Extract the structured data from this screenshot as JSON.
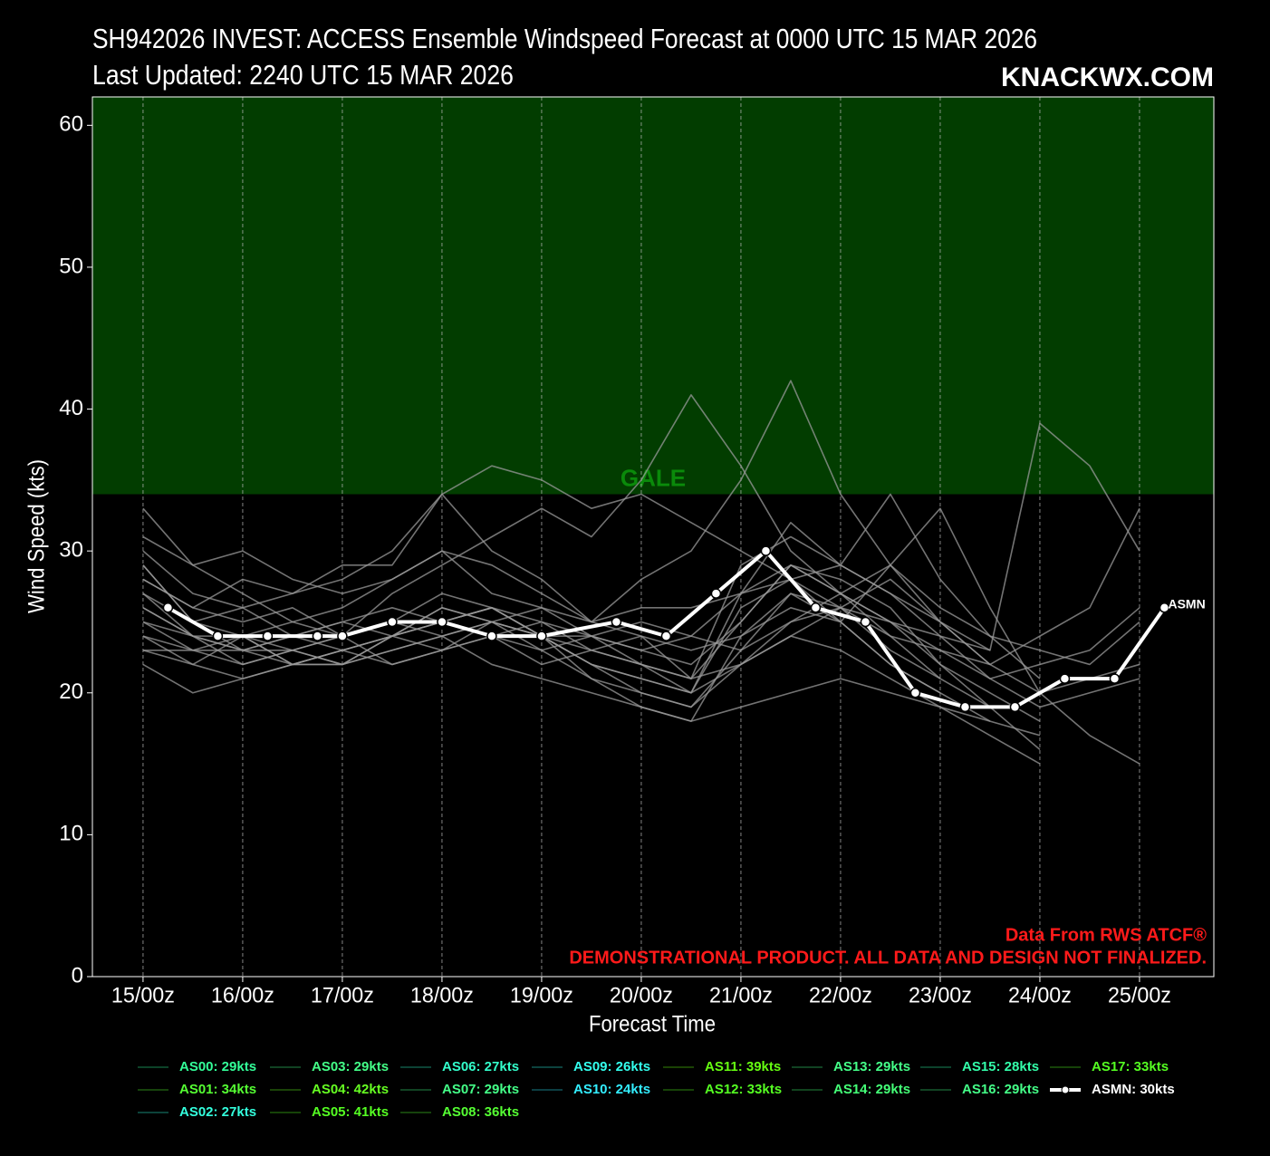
{
  "chart_data": {
    "type": "line",
    "title": "SH942026 INVEST: ACCESS Ensemble Windspeed Forecast at 0000 UTC 15 MAR 2026",
    "subtitle": "Last Updated: 2240 UTC 15 MAR 2026",
    "watermark": "KNACKWX.COM",
    "xlabel": "Forecast Time",
    "ylabel": "Wind Speed (kts)",
    "xlim": [
      -12.2,
      257.9
    ],
    "ylim": [
      0,
      62
    ],
    "xticks": [
      {
        "value": 0,
        "label": "15/00z"
      },
      {
        "value": 24,
        "label": "16/00z"
      },
      {
        "value": 48,
        "label": "17/00z"
      },
      {
        "value": 72,
        "label": "18/00z"
      },
      {
        "value": 96,
        "label": "19/00z"
      },
      {
        "value": 120,
        "label": "20/00z"
      },
      {
        "value": 144,
        "label": "21/00z"
      },
      {
        "value": 168,
        "label": "22/00z"
      },
      {
        "value": 192,
        "label": "23/00z"
      },
      {
        "value": 216,
        "label": "24/00z"
      },
      {
        "value": 240,
        "label": "25/00z"
      }
    ],
    "yticks": [
      0,
      10,
      20,
      30,
      40,
      50,
      60
    ],
    "grid_x": true,
    "background": "#000000",
    "member_line_color": "#9a9a9a",
    "bands": [
      {
        "from": 34,
        "to": 62,
        "label": "GALE",
        "color": "#023d00",
        "label_color": "#0a8a0a"
      }
    ],
    "annotations": [
      "Data From RWS ATCF®",
      "DEMONSTRATIONAL PRODUCT. ALL DATA AND DESIGN NOT FINALIZED."
    ],
    "annotation_color": "#ff1a1a",
    "series": [
      {
        "name": "AS00: 29kts",
        "color": "#33ff99",
        "x": [
          0,
          12,
          24,
          36,
          48,
          60,
          72,
          84,
          96,
          108,
          120,
          132,
          144,
          156,
          168,
          180,
          192,
          204,
          216,
          228,
          240
        ],
        "values": [
          29,
          25,
          24,
          22,
          23,
          24,
          25,
          26,
          24,
          22,
          21,
          20,
          26,
          28,
          25,
          22,
          20,
          18,
          null,
          null,
          null
        ]
      },
      {
        "name": "AS01: 34kts",
        "color": "#55ff33",
        "x": [
          0,
          12,
          24,
          36,
          48,
          60,
          72,
          84,
          96,
          108,
          120,
          132,
          144,
          156,
          168,
          180,
          192,
          204,
          216,
          228,
          240
        ],
        "values": [
          30,
          27,
          26,
          27,
          29,
          29,
          34,
          30,
          28,
          25,
          24,
          21,
          29,
          31,
          29,
          34,
          28,
          24,
          21,
          null,
          null
        ]
      },
      {
        "name": "AS02: 27kts",
        "color": "#33ffdd",
        "x": [
          0,
          12,
          24,
          36,
          48,
          60,
          72,
          84,
          96,
          108,
          120,
          132,
          144,
          156,
          168,
          180,
          192,
          204,
          216,
          228,
          240
        ],
        "values": [
          27,
          24,
          22,
          23,
          22,
          24,
          26,
          25,
          23,
          21,
          19,
          18,
          24,
          27,
          26,
          23,
          21,
          null,
          null,
          null,
          null
        ]
      },
      {
        "name": "AS03: 29kts",
        "color": "#44ff88",
        "x": [
          0,
          12,
          24,
          36,
          48,
          60,
          72,
          84,
          96,
          108,
          120,
          132,
          144,
          156,
          168,
          180,
          192,
          204,
          216,
          228,
          240
        ],
        "values": [
          28,
          26,
          25,
          26,
          24,
          25,
          27,
          26,
          25,
          24,
          22,
          20,
          27,
          29,
          27,
          24,
          21,
          19,
          null,
          null,
          null
        ]
      },
      {
        "name": "AS04: 42kts",
        "color": "#66ff22",
        "x": [
          0,
          12,
          24,
          36,
          48,
          60,
          72,
          84,
          96,
          108,
          120,
          132,
          144,
          156,
          168,
          180,
          192,
          204,
          216,
          228,
          240
        ],
        "values": [
          31,
          29,
          27,
          25,
          26,
          28,
          30,
          29,
          27,
          25,
          28,
          30,
          35,
          42,
          34,
          29,
          25,
          22,
          null,
          null,
          null
        ]
      },
      {
        "name": "AS05: 41kts",
        "color": "#55ff22",
        "x": [
          0,
          12,
          24,
          36,
          48,
          60,
          72,
          84,
          96,
          108,
          120,
          132,
          144,
          156,
          168,
          180,
          192,
          204,
          216,
          228,
          240
        ],
        "values": [
          26,
          24,
          24,
          25,
          24,
          27,
          29,
          31,
          33,
          31,
          35,
          41,
          36,
          30,
          27,
          25,
          22,
          20,
          18,
          null,
          null
        ]
      },
      {
        "name": "AS06: 27kts",
        "color": "#33ffcc",
        "x": [
          0,
          12,
          24,
          36,
          48,
          60,
          72,
          84,
          96,
          108,
          120,
          132,
          144,
          156,
          168,
          180,
          192,
          204,
          216,
          228,
          240
        ],
        "values": [
          25,
          23,
          24,
          22,
          23,
          24,
          25,
          26,
          24,
          21,
          20,
          19,
          23,
          27,
          25,
          22,
          20,
          null,
          null,
          null,
          null
        ]
      },
      {
        "name": "AS07: 29kts",
        "color": "#44ff88",
        "x": [
          0,
          12,
          24,
          36,
          48,
          60,
          72,
          84,
          96,
          108,
          120,
          132,
          144,
          156,
          168,
          180,
          192,
          204,
          216,
          228,
          240
        ],
        "values": [
          29,
          25,
          23,
          24,
          23,
          22,
          23,
          24,
          25,
          23,
          22,
          21,
          25,
          29,
          28,
          26,
          22,
          19,
          16,
          null,
          null
        ]
      },
      {
        "name": "AS08: 36kts",
        "color": "#55ff33",
        "x": [
          0,
          12,
          24,
          36,
          48,
          60,
          72,
          84,
          96,
          108,
          120,
          132,
          144,
          156,
          168,
          180,
          192,
          204,
          216,
          228,
          240
        ],
        "values": [
          28,
          26,
          28,
          27,
          28,
          30,
          34,
          36,
          35,
          33,
          34,
          32,
          30,
          28,
          26,
          25,
          24,
          23,
          null,
          null,
          null
        ]
      },
      {
        "name": "AS09: 26kts",
        "color": "#33ffee",
        "x": [
          0,
          12,
          24,
          36,
          48,
          60,
          72,
          84,
          96,
          108,
          120,
          132,
          144,
          156,
          168,
          180,
          192,
          204,
          216,
          228,
          240
        ],
        "values": [
          24,
          22,
          21,
          22,
          23,
          24,
          25,
          26,
          24,
          22,
          20,
          19,
          22,
          24,
          23,
          21,
          19,
          18,
          17,
          null,
          null
        ]
      },
      {
        "name": "AS10: 24kts",
        "color": "#33eeff",
        "x": [
          0,
          12,
          24,
          36,
          48,
          60,
          72,
          84,
          96,
          108,
          120,
          132,
          144,
          156,
          168,
          180,
          192,
          204,
          216,
          228,
          240
        ],
        "values": [
          22,
          20,
          21,
          22,
          22,
          23,
          24,
          22,
          21,
          20,
          19,
          18,
          19,
          20,
          21,
          20,
          19,
          17,
          15,
          null,
          null
        ]
      },
      {
        "name": "AS11: 39kts",
        "color": "#66ff11",
        "x": [
          0,
          12,
          24,
          36,
          48,
          60,
          72,
          84,
          96,
          108,
          120,
          132,
          144,
          156,
          168,
          180,
          192,
          204,
          216,
          228,
          240
        ],
        "values": [
          33,
          29,
          30,
          28,
          27,
          28,
          30,
          27,
          26,
          24,
          23,
          24,
          27,
          32,
          29,
          27,
          25,
          23,
          39,
          36,
          30
        ]
      },
      {
        "name": "AS12: 33kts",
        "color": "#55ff22",
        "x": [
          0,
          12,
          24,
          36,
          48,
          60,
          72,
          84,
          96,
          108,
          120,
          132,
          144,
          156,
          168,
          180,
          192,
          204,
          216,
          228,
          240
        ],
        "values": [
          23,
          23,
          23,
          22,
          22,
          23,
          24,
          25,
          24,
          22,
          21,
          20,
          22,
          25,
          27,
          29,
          33,
          26,
          20,
          17,
          15
        ]
      },
      {
        "name": "AS13: 29kts",
        "color": "#44ff88",
        "x": [
          0,
          12,
          24,
          36,
          48,
          60,
          72,
          84,
          96,
          108,
          120,
          132,
          144,
          156,
          168,
          180,
          192,
          204,
          216,
          228,
          240
        ],
        "values": [
          27,
          25,
          26,
          24,
          25,
          24,
          26,
          25,
          26,
          25,
          26,
          26,
          27,
          28,
          29,
          27,
          24,
          21,
          19,
          20,
          21
        ]
      },
      {
        "name": "AS14: 29kts",
        "color": "#44ff77",
        "x": [
          0,
          12,
          24,
          36,
          48,
          60,
          72,
          84,
          96,
          108,
          120,
          132,
          144,
          156,
          168,
          180,
          192,
          204,
          216,
          228,
          240
        ],
        "values": [
          26,
          24,
          23,
          24,
          25,
          26,
          25,
          24,
          23,
          24,
          23,
          22,
          25,
          29,
          27,
          25,
          23,
          21,
          22,
          23,
          26
        ]
      },
      {
        "name": "AS15: 28kts",
        "color": "#33ffaa",
        "x": [
          0,
          12,
          24,
          36,
          48,
          60,
          72,
          84,
          96,
          108,
          120,
          132,
          144,
          156,
          168,
          180,
          192,
          204,
          216,
          228,
          240
        ],
        "values": [
          25,
          24,
          23,
          23,
          24,
          25,
          24,
          25,
          24,
          23,
          22,
          21,
          22,
          24,
          26,
          28,
          25,
          22,
          20,
          21,
          22
        ]
      },
      {
        "name": "AS16: 29kts",
        "color": "#44ff88",
        "x": [
          0,
          12,
          24,
          36,
          48,
          60,
          72,
          84,
          96,
          108,
          120,
          132,
          144,
          156,
          168,
          180,
          192,
          204,
          216,
          228,
          240
        ],
        "values": [
          24,
          23,
          22,
          23,
          22,
          24,
          23,
          24,
          22,
          23,
          24,
          23,
          24,
          26,
          25,
          29,
          26,
          24,
          23,
          22,
          25
        ]
      },
      {
        "name": "AS17: 33kts",
        "color": "#55ff22",
        "x": [
          0,
          12,
          24,
          36,
          48,
          60,
          72,
          84,
          96,
          108,
          120,
          132,
          144,
          156,
          168,
          180,
          192,
          204,
          216,
          228,
          240
        ],
        "values": [
          23,
          22,
          24,
          23,
          24,
          22,
          23,
          25,
          24,
          24,
          25,
          24,
          23,
          25,
          26,
          24,
          23,
          22,
          24,
          26,
          33
        ]
      },
      {
        "name": "ASMN: 30kts",
        "color": "#ffffff",
        "mean": true,
        "end_label": "ASMN",
        "x": [
          6,
          18,
          30,
          42,
          48,
          60,
          72,
          84,
          96,
          114,
          126,
          138,
          150,
          162,
          174,
          186,
          198,
          210,
          222,
          234,
          246
        ],
        "values": [
          26,
          24,
          24,
          24,
          24,
          25,
          25,
          24,
          24,
          25,
          24,
          27,
          30,
          26,
          25,
          20,
          19,
          19,
          21,
          21,
          26
        ]
      }
    ]
  }
}
